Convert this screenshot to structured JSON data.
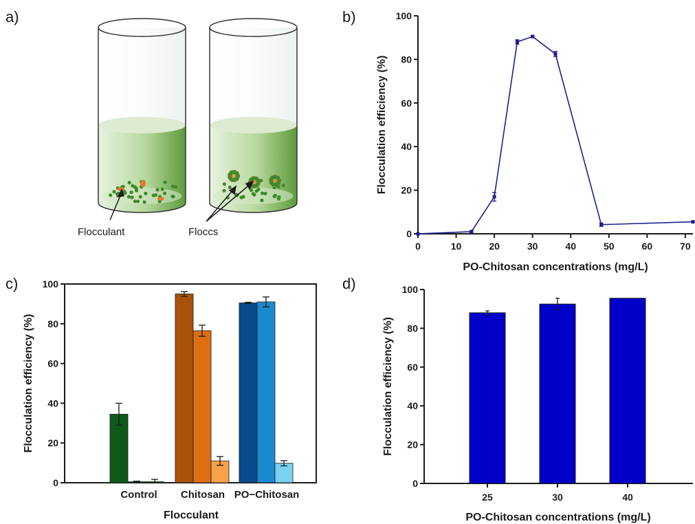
{
  "panels": {
    "a": {
      "label": "a)",
      "annotations": [
        "Flocculant",
        "Floccs"
      ],
      "colors": {
        "liquid": "#8cc06a",
        "particles": "#3f8a2c",
        "flocculant": "#e07a30"
      }
    },
    "b": {
      "label": "b)"
    },
    "c": {
      "label": "c)"
    },
    "d": {
      "label": "d)"
    }
  },
  "chart_data": [
    {
      "id": "b",
      "type": "line",
      "xlabel": "PO-Chitosan concentrations (mg/L)",
      "ylabel": "Flocculation efficiency (%)",
      "xlim": [
        0,
        72
      ],
      "ylim": [
        0,
        100
      ],
      "xticks": [
        0,
        10,
        20,
        30,
        40,
        50,
        60,
        70
      ],
      "yticks": [
        0,
        20,
        40,
        60,
        80,
        100
      ],
      "color": "#1e1e8c",
      "series": [
        {
          "x": [
            0,
            14,
            20,
            26,
            30,
            36,
            48,
            72
          ],
          "y": [
            0,
            1,
            17,
            88,
            90.5,
            82.5,
            4.2,
            5.5
          ],
          "err": [
            0,
            0.5,
            2,
            1,
            0.5,
            1.2,
            0.8,
            0
          ]
        }
      ]
    },
    {
      "id": "c",
      "type": "bar",
      "xlabel": "Flocculant",
      "ylabel": "Flocculation efficiency (%)",
      "ylim": [
        0,
        100
      ],
      "yticks": [
        0,
        20,
        40,
        60,
        80,
        100
      ],
      "categories": [
        "Control",
        "Chitosan",
        "PO−Chitosan"
      ],
      "groups": [
        {
          "values": [
            34.5,
            0.5,
            0.5
          ],
          "err": [
            5.5,
            0.3,
            1.2
          ],
          "colors": [
            "#0f5a1a",
            "#0f5a1a",
            "#0f5a1a"
          ]
        },
        {
          "values": [
            95,
            76.5,
            11
          ],
          "err": [
            1.2,
            2.8,
            2.2
          ],
          "colors": [
            "#a8520a",
            "#dd6f10",
            "#f7a24a"
          ]
        },
        {
          "values": [
            90.5,
            91,
            9.8
          ],
          "err": [
            0.3,
            2.5,
            1.3
          ],
          "colors": [
            "#0a4b8c",
            "#1a8ad0",
            "#7ad2f0"
          ]
        }
      ]
    },
    {
      "id": "d",
      "type": "bar",
      "xlabel": "PO-Chitosan concentrations (mg/L)",
      "ylabel": "Flocculation efficiency (%)",
      "ylim": [
        0,
        100
      ],
      "yticks": [
        0,
        20,
        40,
        60,
        80,
        100
      ],
      "categories": [
        "25",
        "30",
        "40"
      ],
      "values": [
        88,
        92.5,
        95.5
      ],
      "err": [
        1,
        3,
        0
      ],
      "color": "#0000c8"
    }
  ]
}
